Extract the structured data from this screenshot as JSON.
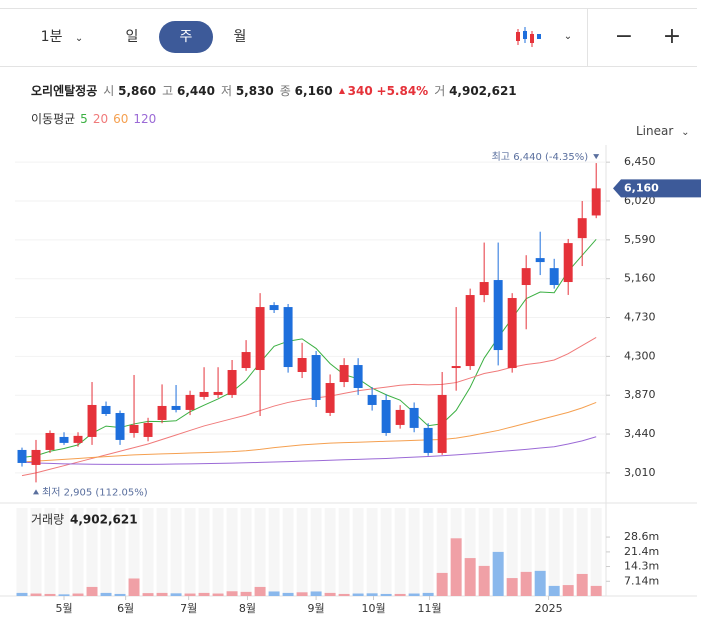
{
  "toolbar": {
    "interval": "1분",
    "tabs": [
      "일",
      "주",
      "월"
    ],
    "active": 1
  },
  "header": {
    "name": "오리엔탈정공",
    "quotes": [
      {
        "label": "시",
        "value": "5,860"
      },
      {
        "label": "고",
        "value": "6,440"
      },
      {
        "label": "저",
        "value": "5,830"
      },
      {
        "label": "종",
        "value": "6,160"
      }
    ],
    "change": "340",
    "change_pct": "+5.84%",
    "volume_label": "거",
    "volume": "4,902,621"
  },
  "ma_label": "이동평균",
  "scale": "Linear",
  "chart_data": [
    {
      "type": "candlestick",
      "up_color": "#e5323a",
      "down_color": "#1e6fdc",
      "open": [
        3264,
        3098,
        3264,
        3408,
        3342,
        3408,
        3751,
        3673,
        3452,
        3408,
        3596,
        3751,
        3707,
        3851,
        3873,
        3873,
        4171,
        4149,
        4868,
        4846,
        4127,
        4315,
        3674,
        4016,
        4204,
        3873,
        3817,
        3541,
        3729,
        3508,
        3231,
        4171,
        4193,
        4979,
        5145,
        4171,
        5090,
        5388,
        5277,
        5123,
        5609,
        5860
      ],
      "high": [
        3290,
        3375,
        3480,
        3460,
        3460,
        4016,
        3800,
        3700,
        4094,
        3620,
        3990,
        3983,
        3920,
        4180,
        4180,
        4260,
        4480,
        5000,
        4900,
        4880,
        4450,
        4360,
        4100,
        4280,
        4280,
        3960,
        3880,
        3760,
        3790,
        3560,
        4127,
        4846,
        5050,
        5560,
        5560,
        5000,
        5420,
        5680,
        5380,
        5600,
        6020,
        6440
      ],
      "low": [
        3080,
        2905,
        3230,
        3320,
        3300,
        3320,
        3640,
        3320,
        3400,
        3360,
        3560,
        3680,
        3650,
        3820,
        3840,
        3840,
        4140,
        3640,
        4780,
        4120,
        4060,
        3740,
        3640,
        3960,
        3873,
        3700,
        3420,
        3500,
        3460,
        3200,
        3210,
        3920,
        4150,
        4900,
        4200,
        4120,
        4600,
        5200,
        5050,
        4980,
        5300,
        5830
      ],
      "close": [
        3120,
        3264,
        3452,
        3342,
        3420,
        3762,
        3662,
        3375,
        3541,
        3563,
        3751,
        3707,
        3873,
        3906,
        3906,
        4149,
        4348,
        4846,
        4813,
        4182,
        4282,
        3817,
        4005,
        4204,
        3950,
        3762,
        3452,
        3707,
        3508,
        3231,
        3873,
        4193,
        4979,
        5123,
        4370,
        4946,
        5277,
        5344,
        5090,
        5554,
        5830,
        6160
      ],
      "series": [
        {
          "name": "5",
          "color": "#3cb043",
          "values": [
            3180,
            3200,
            3250,
            3280,
            3320,
            3448,
            3528,
            3512,
            3552,
            3581,
            3578,
            3587,
            3687,
            3760,
            3829,
            3908,
            4036,
            4231,
            4412,
            4468,
            4494,
            4388,
            4220,
            4098,
            4052,
            3948,
            3875,
            3815,
            3676,
            3532,
            3554,
            3702,
            3957,
            4280,
            4508,
            4722,
            4939,
            5012,
            5005,
            5242,
            5419,
            5596
          ]
        },
        {
          "name": "20",
          "color": "#f07a7a",
          "values": [
            2980,
            3010,
            3050,
            3090,
            3130,
            3170,
            3210,
            3250,
            3290,
            3330,
            3380,
            3430,
            3480,
            3530,
            3570,
            3610,
            3650,
            3700,
            3750,
            3790,
            3820,
            3840,
            3860,
            3890,
            3920,
            3940,
            3960,
            3980,
            3990,
            3985,
            3990,
            4010,
            4060,
            4110,
            4140,
            4180,
            4210,
            4230,
            4260,
            4330,
            4420,
            4510
          ]
        },
        {
          "name": "60",
          "color": "#f5a050",
          "values": [
            3130,
            3140,
            3150,
            3160,
            3170,
            3180,
            3190,
            3200,
            3210,
            3215,
            3220,
            3225,
            3230,
            3235,
            3240,
            3245,
            3255,
            3270,
            3290,
            3305,
            3320,
            3330,
            3340,
            3345,
            3350,
            3355,
            3360,
            3365,
            3370,
            3375,
            3380,
            3395,
            3420,
            3450,
            3480,
            3520,
            3560,
            3600,
            3640,
            3680,
            3730,
            3790
          ]
        },
        {
          "name": "120",
          "color": "#9b6ad6",
          "values": [
            3130,
            3120,
            3115,
            3110,
            3108,
            3106,
            3105,
            3104,
            3104,
            3105,
            3106,
            3108,
            3110,
            3112,
            3115,
            3118,
            3122,
            3126,
            3130,
            3135,
            3140,
            3145,
            3150,
            3155,
            3160,
            3165,
            3170,
            3178,
            3185,
            3192,
            3200,
            3210,
            3220,
            3232,
            3245,
            3258,
            3270,
            3285,
            3300,
            3330,
            3365,
            3410
          ]
        }
      ],
      "ylim": [
        2710,
        6640
      ],
      "yticks": [
        {
          "value": 3010,
          "label": "3,010"
        },
        {
          "value": 3440,
          "label": "3,440"
        },
        {
          "value": 3870,
          "label": "3,870"
        },
        {
          "value": 4300,
          "label": "4,300"
        },
        {
          "value": 4730,
          "label": "4,730"
        },
        {
          "value": 5160,
          "label": "5,160"
        },
        {
          "value": 5590,
          "label": "5,590"
        },
        {
          "value": 6020,
          "label": "6,020"
        },
        {
          "value": 6450,
          "label": "6,450"
        }
      ],
      "xlim": [
        -0.5,
        41.7
      ],
      "grid": true,
      "price_tag": "6,160",
      "high_annotation": "최고 6,440 (-4.35%)",
      "low_annotation": "최저 2,905 (112.05%)"
    },
    {
      "type": "bar",
      "title": "거래량",
      "current": "4,902,621",
      "up_color": "#f0a0a6",
      "down_color": "#8ab8ec",
      "values": [
        1500000,
        1200000,
        1000000,
        800000,
        1200000,
        4400000,
        1500000,
        1000000,
        8500000,
        1400000,
        1500000,
        1300000,
        1200000,
        1500000,
        1200000,
        2300000,
        2000000,
        4400000,
        2200000,
        1500000,
        1800000,
        2200000,
        1500000,
        1000000,
        1200000,
        1300000,
        1000000,
        1000000,
        1200000,
        1500000,
        11200000,
        28000000,
        18400000,
        14600000,
        21400000,
        8700000,
        11700000,
        12200000,
        4900000,
        5300000,
        10700000,
        4902621
      ],
      "ylim": [
        0,
        42700000
      ],
      "yticks": [
        {
          "value": 7140000,
          "label": "7.14m"
        },
        {
          "value": 14300000,
          "label": "14.3m"
        },
        {
          "value": 21400000,
          "label": "21.4m"
        },
        {
          "value": 28600000,
          "label": "28.6m"
        }
      ],
      "xticks": [
        {
          "value": 3,
          "label": "5월"
        },
        {
          "value": 7.4,
          "label": "6월"
        },
        {
          "value": 11.9,
          "label": "7월"
        },
        {
          "value": 16.1,
          "label": "8월"
        },
        {
          "value": 21,
          "label": "9월"
        },
        {
          "value": 25.1,
          "label": "10월"
        },
        {
          "value": 29.1,
          "label": "11월"
        },
        {
          "value": 37.6,
          "label": "2025"
        }
      ]
    }
  ]
}
